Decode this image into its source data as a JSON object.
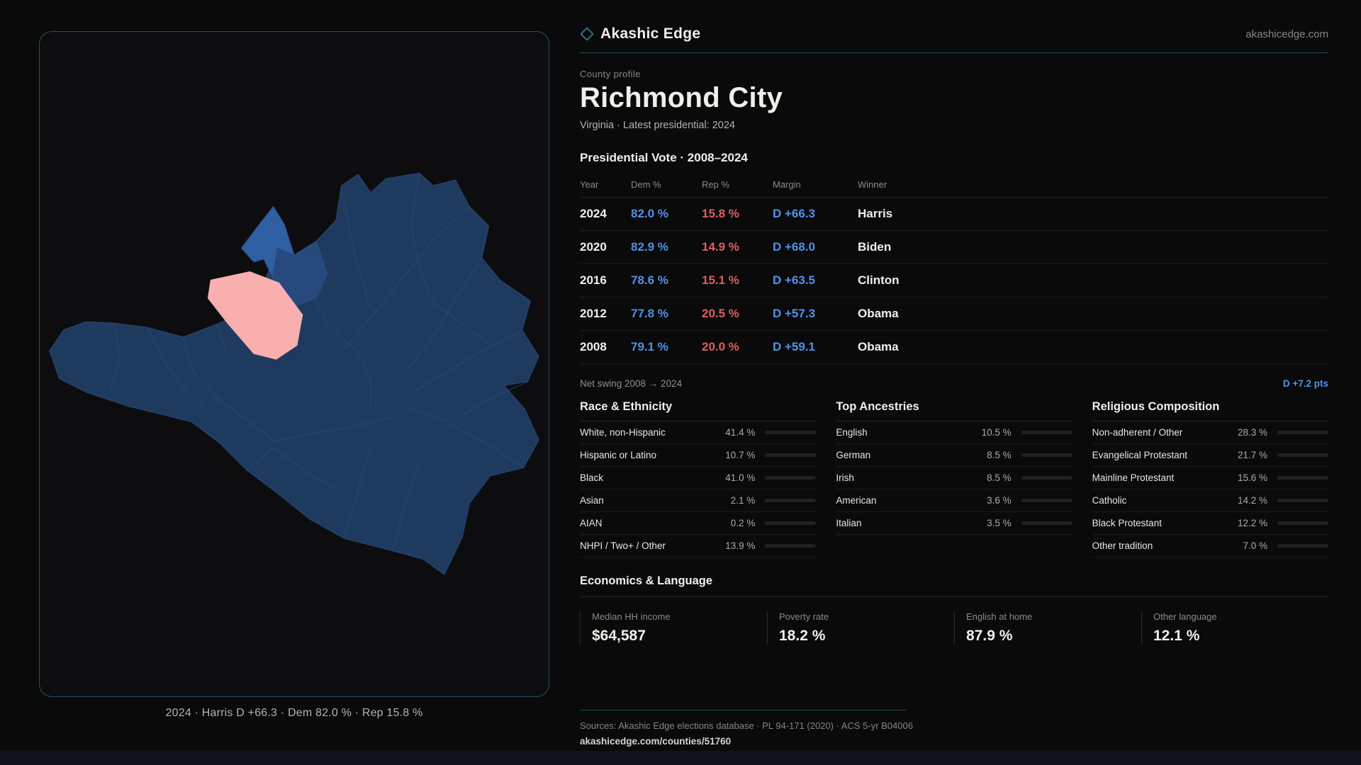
{
  "brand": {
    "name": "Akashic Edge",
    "domain": "akashicedge.com",
    "accent_teal": "#2e7280"
  },
  "profile": {
    "kicker": "County profile",
    "title": "Richmond City",
    "subtitle": "Virginia · Latest presidential: 2024"
  },
  "vote_table": {
    "title": "Presidential Vote · 2008–2024",
    "columns": {
      "year": "Year",
      "dem": "Dem %",
      "rep": "Rep %",
      "margin": "Margin",
      "winner": "Winner"
    },
    "rows": [
      {
        "year": "2024",
        "dem": "82.0 %",
        "rep": "15.8 %",
        "margin": "D +66.3",
        "winner": "Harris"
      },
      {
        "year": "2020",
        "dem": "82.9 %",
        "rep": "14.9 %",
        "margin": "D +68.0",
        "winner": "Biden"
      },
      {
        "year": "2016",
        "dem": "78.6 %",
        "rep": "15.1 %",
        "margin": "D +63.5",
        "winner": "Clinton"
      },
      {
        "year": "2012",
        "dem": "77.8 %",
        "rep": "20.5 %",
        "margin": "D +57.3",
        "winner": "Obama"
      },
      {
        "year": "2008",
        "dem": "79.1 %",
        "rep": "20.0 %",
        "margin": "D +59.1",
        "winner": "Obama"
      }
    ],
    "net_swing_label": "Net swing 2008 → 2024",
    "net_swing_value": "D +7.2 pts",
    "dem_color": "#5193e6",
    "rep_color": "#e05e5e"
  },
  "demographics": {
    "race": {
      "title": "Race & Ethnicity",
      "rows": [
        {
          "label": "White, non-Hispanic",
          "display": "41.4 %",
          "value": 41.4
        },
        {
          "label": "Hispanic or Latino",
          "display": "10.7 %",
          "value": 10.7
        },
        {
          "label": "Black",
          "display": "41.0 %",
          "value": 41.0
        },
        {
          "label": "Asian",
          "display": "2.1 %",
          "value": 2.1
        },
        {
          "label": "AIAN",
          "display": "0.2 %",
          "value": 0.2
        },
        {
          "label": "NHPI / Two+ / Other",
          "display": "13.9 %",
          "value": 13.9
        }
      ]
    },
    "ancestry": {
      "title": "Top Ancestries",
      "rows": [
        {
          "label": "English",
          "display": "10.5 %",
          "value": 10.5
        },
        {
          "label": "German",
          "display": "8.5 %",
          "value": 8.5
        },
        {
          "label": "Irish",
          "display": "8.5 %",
          "value": 8.5
        },
        {
          "label": "American",
          "display": "3.6 %",
          "value": 3.6
        },
        {
          "label": "Italian",
          "display": "3.5 %",
          "value": 3.5
        }
      ]
    },
    "religion": {
      "title": "Religious Composition",
      "rows": [
        {
          "label": "Non-adherent / Other",
          "display": "28.3 %",
          "value": 28.3
        },
        {
          "label": "Evangelical Protestant",
          "display": "21.7 %",
          "value": 21.7
        },
        {
          "label": "Mainline Protestant",
          "display": "15.6 %",
          "value": 15.6
        },
        {
          "label": "Catholic",
          "display": "14.2 %",
          "value": 14.2
        },
        {
          "label": "Black Protestant",
          "display": "12.2 %",
          "value": 12.2
        },
        {
          "label": "Other tradition",
          "display": "7.0 %",
          "value": 7.0
        }
      ]
    }
  },
  "economics": {
    "title": "Economics & Language",
    "stats": [
      {
        "label": "Median HH income",
        "value": "$64,587"
      },
      {
        "label": "Poverty rate",
        "value": "18.2 %"
      },
      {
        "label": "English at home",
        "value": "87.9 %"
      },
      {
        "label": "Other language",
        "value": "12.1 %"
      }
    ]
  },
  "map": {
    "caption": "2024 · Harris D +66.3 · Dem 82.0 % · Rep 15.8 %",
    "fill_navy": "#1e3a5f",
    "fill_blue_precinct": "#2f5fa3",
    "fill_mid_precinct": "#27497d",
    "fill_pink_precinct": "#f9afae",
    "boundary_color": "#2b4b76"
  },
  "footer": {
    "sources": "Sources: Akashic Edge elections database · PL 94-171 (2020) · ACS 5-yr B04006",
    "link": "akashicedge.com/counties/51760"
  }
}
